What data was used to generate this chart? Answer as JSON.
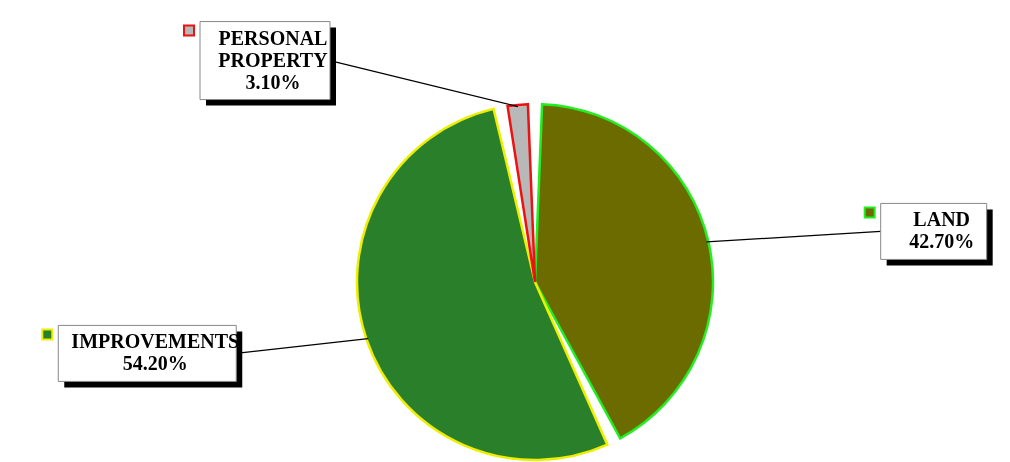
{
  "chart_data": {
    "type": "pie",
    "categories": [
      "LAND",
      "IMPROVEMENTS",
      "PERSONAL PROPERTY"
    ],
    "values": [
      42.7,
      54.2,
      3.1
    ],
    "colors": [
      "#6b6b00",
      "#2a7f2a",
      "#b8b8b8"
    ],
    "value_labels": [
      "42.70%",
      "54.20%",
      "3.10%"
    ],
    "legend": "left"
  }
}
